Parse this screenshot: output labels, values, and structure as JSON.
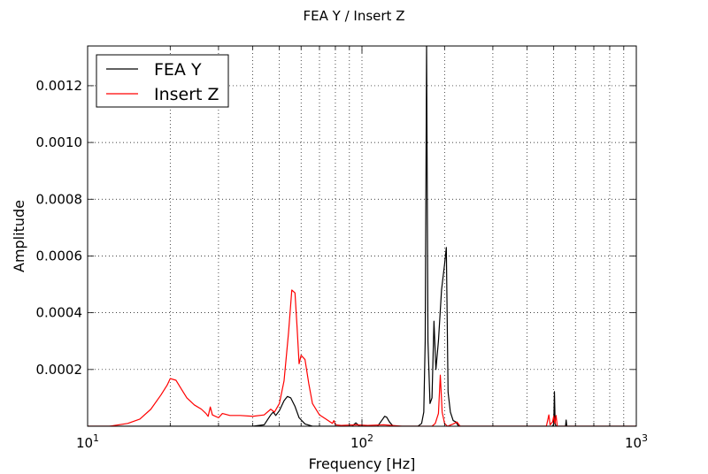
{
  "chart_data": {
    "type": "line",
    "title": "FEA Y / Insert Z",
    "xlabel": "Frequency [Hz]",
    "ylabel": "Amplitude",
    "x_scale": "log",
    "xlim": [
      10,
      1000
    ],
    "ylim": [
      0,
      0.00134
    ],
    "grid": true,
    "legend_position": "top-left",
    "x_ticks": [
      {
        "value": 10,
        "base": "10",
        "exp": "1"
      },
      {
        "value": 100,
        "base": "10",
        "exp": "2"
      },
      {
        "value": 1000,
        "base": "10",
        "exp": "3"
      }
    ],
    "y_ticks": [
      {
        "value": 0.0002,
        "label": "0.0002"
      },
      {
        "value": 0.0004,
        "label": "0.0004"
      },
      {
        "value": 0.0006,
        "label": "0.0006"
      },
      {
        "value": 0.0008,
        "label": "0.0008"
      },
      {
        "value": 0.001,
        "label": "0.0010"
      },
      {
        "value": 0.0012,
        "label": "0.0012"
      }
    ],
    "series": [
      {
        "name": "FEA Y",
        "color": "#000000",
        "points": [
          [
            10,
            0
          ],
          [
            40,
            0
          ],
          [
            44,
            5e-06
          ],
          [
            46.5,
            4e-05
          ],
          [
            47.5,
            5e-05
          ],
          [
            48.5,
            3.8e-05
          ],
          [
            50,
            5.5e-05
          ],
          [
            52,
            9e-05
          ],
          [
            53.5,
            0.000105
          ],
          [
            55,
            0.0001
          ],
          [
            57,
            7e-05
          ],
          [
            59,
            3e-05
          ],
          [
            62,
            8e-06
          ],
          [
            66,
            0
          ],
          [
            92,
            0
          ],
          [
            95,
            1.2e-05
          ],
          [
            98,
            0
          ],
          [
            114,
            0
          ],
          [
            118,
            2e-05
          ],
          [
            121,
            3.5e-05
          ],
          [
            123,
            3.2e-05
          ],
          [
            126,
            1.5e-05
          ],
          [
            130,
            0
          ],
          [
            145,
            0
          ],
          [
            160,
            0
          ],
          [
            165,
            1e-05
          ],
          [
            168,
            5e-05
          ],
          [
            170,
            0.0003
          ],
          [
            172,
            0.00134
          ],
          [
            174,
            0.0003
          ],
          [
            177,
            8e-05
          ],
          [
            180,
            0.0001
          ],
          [
            183,
            0.00037
          ],
          [
            186,
            0.0002
          ],
          [
            190,
            0.0003
          ],
          [
            195,
            0.00048
          ],
          [
            200,
            0.00057
          ],
          [
            203,
            0.00063
          ],
          [
            206,
            0.00012
          ],
          [
            210,
            5e-05
          ],
          [
            215,
            2e-05
          ],
          [
            220,
            1.5e-05
          ],
          [
            225,
            0
          ],
          [
            260,
            0
          ],
          [
            495,
            0
          ],
          [
            500,
            8e-06
          ],
          [
            503,
            0.000122
          ],
          [
            506,
            8e-06
          ],
          [
            510,
            0
          ],
          [
            552,
            0
          ],
          [
            555,
            2.2e-05
          ],
          [
            558,
            0
          ],
          [
            1000,
            0
          ]
        ]
      },
      {
        "name": "Insert Z",
        "color": "#ff0000",
        "points": [
          [
            10,
            0
          ],
          [
            12,
            0
          ],
          [
            14,
            1e-05
          ],
          [
            15.5,
            2.5e-05
          ],
          [
            17,
            6e-05
          ],
          [
            18.5,
            0.00011
          ],
          [
            19.5,
            0.000145
          ],
          [
            20,
            0.000168
          ],
          [
            21,
            0.000162
          ],
          [
            22,
            0.00013
          ],
          [
            23,
            0.0001
          ],
          [
            24.5,
            7.5e-05
          ],
          [
            26,
            6e-05
          ],
          [
            27,
            4.5e-05
          ],
          [
            27.5,
            3.5e-05
          ],
          [
            28,
            6.8e-05
          ],
          [
            28.5,
            4e-05
          ],
          [
            30,
            3e-05
          ],
          [
            31,
            4.5e-05
          ],
          [
            33,
            3.8e-05
          ],
          [
            36,
            3.8e-05
          ],
          [
            40,
            3.5e-05
          ],
          [
            44,
            4e-05
          ],
          [
            46.5,
            6e-05
          ],
          [
            48,
            5e-05
          ],
          [
            50,
            8e-05
          ],
          [
            52,
            0.00016
          ],
          [
            54,
            0.00033
          ],
          [
            55.5,
            0.00048
          ],
          [
            57,
            0.00047
          ],
          [
            58,
            0.00035
          ],
          [
            59,
            0.00022
          ],
          [
            60,
            0.00025
          ],
          [
            62,
            0.000235
          ],
          [
            64,
            0.00015
          ],
          [
            66,
            8e-05
          ],
          [
            70,
            4e-05
          ],
          [
            74,
            2.5e-05
          ],
          [
            78,
            1e-05
          ],
          [
            79,
            2e-05
          ],
          [
            80,
            5e-06
          ],
          [
            84,
            3e-06
          ],
          [
            95,
            5e-06
          ],
          [
            105,
            3e-06
          ],
          [
            120,
            5e-06
          ],
          [
            140,
            0
          ],
          [
            170,
            0
          ],
          [
            180,
            0
          ],
          [
            185,
            1e-05
          ],
          [
            190,
            4.5e-05
          ],
          [
            193,
            0.00018
          ],
          [
            196,
            5e-05
          ],
          [
            200,
            1e-05
          ],
          [
            205,
            0
          ],
          [
            215,
            8e-06
          ],
          [
            222,
            1.5e-05
          ],
          [
            228,
            0
          ],
          [
            400,
            0
          ],
          [
            470,
            0
          ],
          [
            480,
            4e-05
          ],
          [
            485,
            5e-06
          ],
          [
            495,
            1.5e-05
          ],
          [
            500,
            3.5e-05
          ],
          [
            505,
            1e-05
          ],
          [
            510,
            3.8e-05
          ],
          [
            515,
            0
          ],
          [
            1000,
            0
          ]
        ]
      }
    ]
  }
}
